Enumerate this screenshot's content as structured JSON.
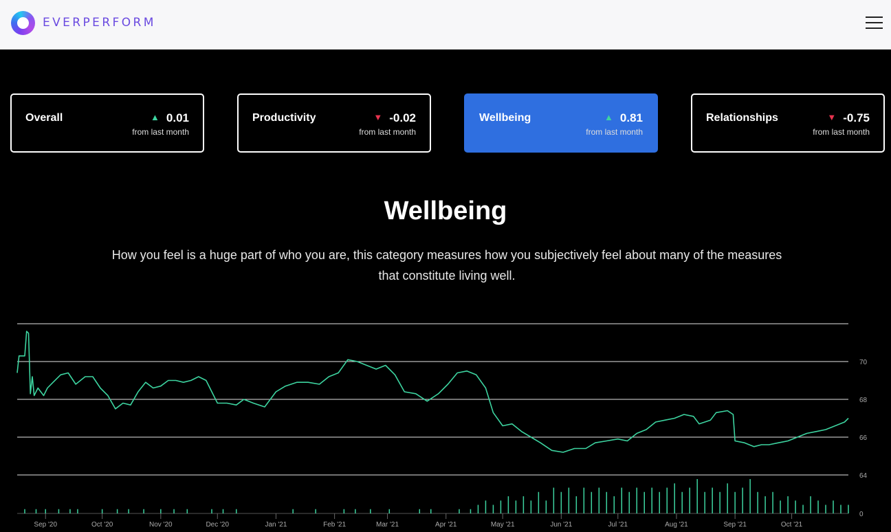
{
  "header": {
    "brand": "EVERPERFORM",
    "menu_icon": "hamburger-menu-icon"
  },
  "cards": [
    {
      "label": "Overall",
      "delta": "0.01",
      "direction": "up",
      "sub": "from last month",
      "active": false
    },
    {
      "label": "Productivity",
      "delta": "-0.02",
      "direction": "down",
      "sub": "from last month",
      "active": false
    },
    {
      "label": "Wellbeing",
      "delta": "0.81",
      "direction": "up",
      "sub": "from last month",
      "active": true
    },
    {
      "label": "Relationships",
      "delta": "-0.75",
      "direction": "down",
      "sub": "from last month",
      "active": false
    }
  ],
  "section": {
    "title": "Wellbeing",
    "description": "How you feel is a huge part of who you are, this category measures how you subjectively feel about many of the measures that constitute living well."
  },
  "colors": {
    "accent": "#2f6fe0",
    "line": "#3dd4a0",
    "up": "#3dd4a0",
    "down": "#e8334f"
  },
  "chart_data": {
    "type": "line",
    "title": "",
    "xlabel": "",
    "ylabel": "",
    "y_ticks": [
      "70",
      "68",
      "66",
      "64"
    ],
    "ylim": [
      64,
      72
    ],
    "volume_tick": "0",
    "x_ticks": [
      "Sep '20",
      "Oct '20",
      "Nov '20",
      "Dec '20",
      "Jan '21",
      "Feb '21",
      "Mar '21",
      "Apr '21",
      "May '21",
      "Jun '21",
      "Jul '21",
      "Aug '21",
      "Sep '21",
      "Oct '21"
    ],
    "x_range": [
      "2020-08-17",
      "2021-10-31"
    ],
    "grid": true,
    "series": [
      {
        "values": [
          [
            "2020-08-17",
            69.4
          ],
          [
            "2020-08-18",
            70.3
          ],
          [
            "2020-08-21",
            70.3
          ],
          [
            "2020-08-22",
            71.6
          ],
          [
            "2020-08-23",
            71.5
          ],
          [
            "2020-08-24",
            68.3
          ],
          [
            "2020-08-25",
            69.2
          ],
          [
            "2020-08-26",
            68.2
          ],
          [
            "2020-08-28",
            68.6
          ],
          [
            "2020-08-31",
            68.2
          ],
          [
            "2020-09-02",
            68.6
          ],
          [
            "2020-09-05",
            68.9
          ],
          [
            "2020-09-09",
            69.3
          ],
          [
            "2020-09-13",
            69.4
          ],
          [
            "2020-09-17",
            68.8
          ],
          [
            "2020-09-22",
            69.2
          ],
          [
            "2020-09-26",
            69.2
          ],
          [
            "2020-09-30",
            68.6
          ],
          [
            "2020-10-04",
            68.2
          ],
          [
            "2020-10-08",
            67.5
          ],
          [
            "2020-10-12",
            67.8
          ],
          [
            "2020-10-16",
            67.7
          ],
          [
            "2020-10-20",
            68.4
          ],
          [
            "2020-10-24",
            68.9
          ],
          [
            "2020-10-28",
            68.6
          ],
          [
            "2020-11-01",
            68.7
          ],
          [
            "2020-11-05",
            69.0
          ],
          [
            "2020-11-09",
            69.0
          ],
          [
            "2020-11-13",
            68.9
          ],
          [
            "2020-11-17",
            69.0
          ],
          [
            "2020-11-21",
            69.2
          ],
          [
            "2020-11-25",
            69.0
          ],
          [
            "2020-12-01",
            67.8
          ],
          [
            "2020-12-06",
            67.8
          ],
          [
            "2020-12-11",
            67.7
          ],
          [
            "2020-12-15",
            68.0
          ],
          [
            "2020-12-20",
            67.8
          ],
          [
            "2020-12-26",
            67.6
          ],
          [
            "2021-01-01",
            68.4
          ],
          [
            "2021-01-06",
            68.7
          ],
          [
            "2021-01-12",
            68.9
          ],
          [
            "2021-01-18",
            68.9
          ],
          [
            "2021-01-24",
            68.8
          ],
          [
            "2021-01-29",
            69.2
          ],
          [
            "2021-02-03",
            69.4
          ],
          [
            "2021-02-08",
            70.1
          ],
          [
            "2021-02-13",
            70.0
          ],
          [
            "2021-02-18",
            69.8
          ],
          [
            "2021-02-23",
            69.6
          ],
          [
            "2021-02-28",
            69.8
          ],
          [
            "2021-03-05",
            69.3
          ],
          [
            "2021-03-10",
            68.4
          ],
          [
            "2021-03-16",
            68.3
          ],
          [
            "2021-03-22",
            67.9
          ],
          [
            "2021-03-28",
            68.3
          ],
          [
            "2021-04-02",
            68.8
          ],
          [
            "2021-04-07",
            69.4
          ],
          [
            "2021-04-12",
            69.5
          ],
          [
            "2021-04-17",
            69.3
          ],
          [
            "2021-04-22",
            68.6
          ],
          [
            "2021-04-26",
            67.3
          ],
          [
            "2021-05-01",
            66.6
          ],
          [
            "2021-05-06",
            66.7
          ],
          [
            "2021-05-11",
            66.3
          ],
          [
            "2021-05-16",
            66.0
          ],
          [
            "2021-05-21",
            65.7
          ],
          [
            "2021-05-27",
            65.3
          ],
          [
            "2021-06-02",
            65.2
          ],
          [
            "2021-06-08",
            65.4
          ],
          [
            "2021-06-14",
            65.4
          ],
          [
            "2021-06-19",
            65.7
          ],
          [
            "2021-06-25",
            65.8
          ],
          [
            "2021-07-01",
            65.9
          ],
          [
            "2021-07-06",
            65.8
          ],
          [
            "2021-07-11",
            66.2
          ],
          [
            "2021-07-16",
            66.4
          ],
          [
            "2021-07-21",
            66.8
          ],
          [
            "2021-07-26",
            66.9
          ],
          [
            "2021-07-31",
            67.0
          ],
          [
            "2021-08-05",
            67.2
          ],
          [
            "2021-08-10",
            67.1
          ],
          [
            "2021-08-13",
            66.7
          ],
          [
            "2021-08-16",
            66.8
          ],
          [
            "2021-08-19",
            66.9
          ],
          [
            "2021-08-22",
            67.3
          ],
          [
            "2021-08-28",
            67.4
          ],
          [
            "2021-08-31",
            67.2
          ],
          [
            "2021-09-01",
            65.8
          ],
          [
            "2021-09-06",
            65.7
          ],
          [
            "2021-09-11",
            65.5
          ],
          [
            "2021-09-15",
            65.6
          ],
          [
            "2021-09-19",
            65.6
          ],
          [
            "2021-09-24",
            65.7
          ],
          [
            "2021-09-29",
            65.8
          ],
          [
            "2021-10-04",
            66.0
          ],
          [
            "2021-10-09",
            66.2
          ],
          [
            "2021-10-14",
            66.3
          ],
          [
            "2021-10-19",
            66.4
          ],
          [
            "2021-10-24",
            66.6
          ],
          [
            "2021-10-29",
            66.8
          ],
          [
            "2021-10-31",
            67.0
          ]
        ]
      }
    ],
    "volume": {
      "values": [
        [
          "2020-08-21",
          1
        ],
        [
          "2020-08-27",
          1
        ],
        [
          "2020-09-01",
          1
        ],
        [
          "2020-09-08",
          1
        ],
        [
          "2020-09-14",
          1
        ],
        [
          "2020-09-18",
          1
        ],
        [
          "2020-10-01",
          1
        ],
        [
          "2020-10-09",
          1
        ],
        [
          "2020-10-15",
          1
        ],
        [
          "2020-10-23",
          1
        ],
        [
          "2020-11-01",
          1
        ],
        [
          "2020-11-08",
          1
        ],
        [
          "2020-11-15",
          1
        ],
        [
          "2020-11-28",
          1
        ],
        [
          "2020-12-04",
          1
        ],
        [
          "2020-12-11",
          1
        ],
        [
          "2021-01-10",
          1
        ],
        [
          "2021-01-22",
          1
        ],
        [
          "2021-02-06",
          1
        ],
        [
          "2021-02-12",
          1
        ],
        [
          "2021-02-20",
          1
        ],
        [
          "2021-03-02",
          1
        ],
        [
          "2021-03-18",
          1
        ],
        [
          "2021-03-24",
          1
        ],
        [
          "2021-04-08",
          1
        ],
        [
          "2021-04-14",
          1
        ],
        [
          "2021-04-18",
          2
        ],
        [
          "2021-04-22",
          3
        ],
        [
          "2021-04-26",
          2
        ],
        [
          "2021-04-30",
          3
        ],
        [
          "2021-05-04",
          4
        ],
        [
          "2021-05-08",
          3
        ],
        [
          "2021-05-12",
          4
        ],
        [
          "2021-05-16",
          3
        ],
        [
          "2021-05-20",
          5
        ],
        [
          "2021-05-24",
          3
        ],
        [
          "2021-05-28",
          6
        ],
        [
          "2021-06-01",
          5
        ],
        [
          "2021-06-05",
          6
        ],
        [
          "2021-06-09",
          4
        ],
        [
          "2021-06-13",
          6
        ],
        [
          "2021-06-17",
          5
        ],
        [
          "2021-06-21",
          6
        ],
        [
          "2021-06-25",
          5
        ],
        [
          "2021-06-29",
          4
        ],
        [
          "2021-07-03",
          6
        ],
        [
          "2021-07-07",
          5
        ],
        [
          "2021-07-11",
          6
        ],
        [
          "2021-07-15",
          5
        ],
        [
          "2021-07-19",
          6
        ],
        [
          "2021-07-23",
          5
        ],
        [
          "2021-07-27",
          6
        ],
        [
          "2021-07-31",
          7
        ],
        [
          "2021-08-04",
          5
        ],
        [
          "2021-08-08",
          6
        ],
        [
          "2021-08-12",
          8
        ],
        [
          "2021-08-16",
          5
        ],
        [
          "2021-08-20",
          6
        ],
        [
          "2021-08-24",
          5
        ],
        [
          "2021-08-28",
          7
        ],
        [
          "2021-09-01",
          5
        ],
        [
          "2021-09-05",
          6
        ],
        [
          "2021-09-09",
          8
        ],
        [
          "2021-09-13",
          5
        ],
        [
          "2021-09-17",
          4
        ],
        [
          "2021-09-21",
          5
        ],
        [
          "2021-09-25",
          3
        ],
        [
          "2021-09-29",
          4
        ],
        [
          "2021-10-03",
          3
        ],
        [
          "2021-10-07",
          2
        ],
        [
          "2021-10-11",
          4
        ],
        [
          "2021-10-15",
          3
        ],
        [
          "2021-10-19",
          2
        ],
        [
          "2021-10-23",
          3
        ],
        [
          "2021-10-27",
          2
        ],
        [
          "2021-10-31",
          2
        ]
      ]
    }
  }
}
